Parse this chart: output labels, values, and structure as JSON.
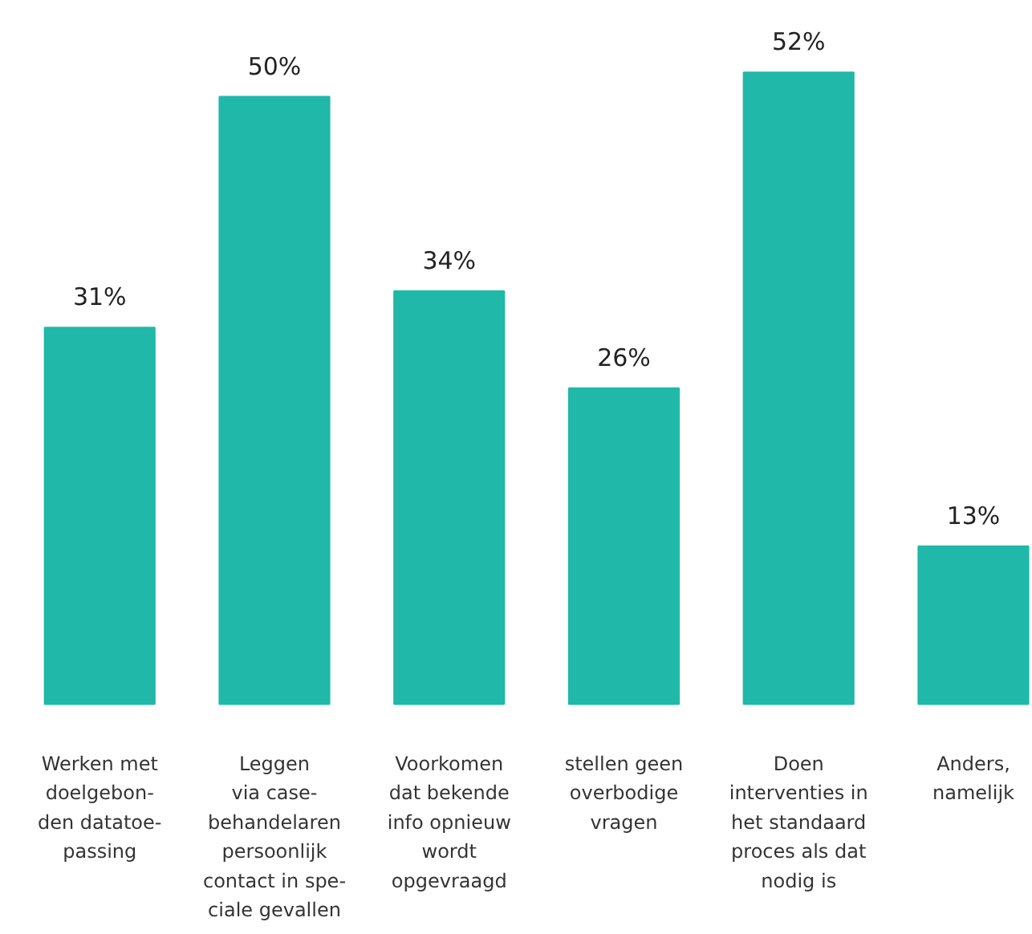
{
  "chart_data": {
    "type": "bar",
    "categories": [
      "Werken met\ndoelgebon-\nden datatoe-\npassing",
      "Leggen\nvia case-\nbehandelaren\npersoonlijk\ncontact in spe-\nciale gevallen",
      "Voorkomen\ndat bekende\ninfo opnieuw\nwordt\nopgevraagd",
      "stellen geen\noverbodige\nvragen",
      "Doen\ninterventies in\nhet standaard\nproces als dat\nnodig is",
      "Anders,\nnamelijk"
    ],
    "values": [
      31,
      50,
      34,
      26,
      52,
      13
    ],
    "value_labels": [
      "31%",
      "50%",
      "34%",
      "26%",
      "52%",
      "13%"
    ],
    "color": "#20b8a8"
  }
}
